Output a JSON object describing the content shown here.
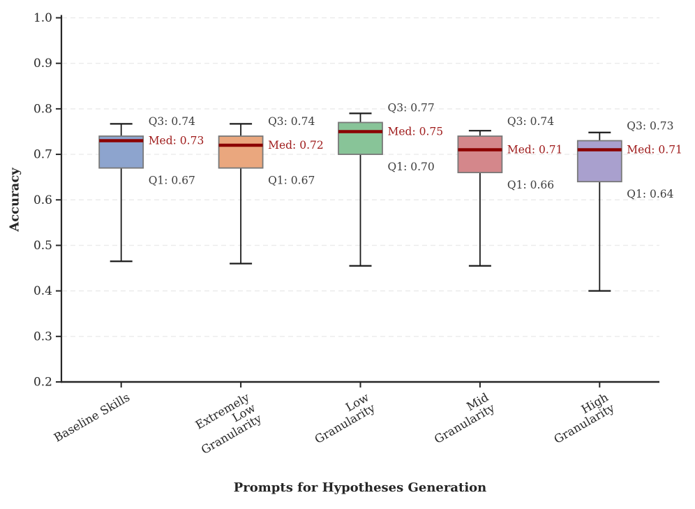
{
  "chart_data": {
    "type": "boxplot",
    "title": "",
    "xlabel": "Prompts for Hypotheses Generation",
    "ylabel": "Accuracy",
    "ylim": [
      0.2,
      1.0
    ],
    "yticks": [
      0.2,
      0.3,
      0.4,
      0.5,
      0.6,
      0.7,
      0.8,
      0.9,
      1.0
    ],
    "grid": "horizontal dashed",
    "legend": "none",
    "boxes": [
      {
        "category": "Baseline Skills",
        "category_lines": [
          "Baseline Skills"
        ],
        "whisker_low": 0.465,
        "q1": 0.67,
        "median": 0.73,
        "q3": 0.74,
        "whisker_high": 0.767,
        "fill": "#8da4ce",
        "labels": {
          "q3": "Q3: 0.74",
          "med": "Med: 0.73",
          "q1": "Q1: 0.67"
        }
      },
      {
        "category": "Extremely Low Granularity",
        "category_lines": [
          "Extremely",
          "Low",
          "Granularity"
        ],
        "whisker_low": 0.46,
        "q1": 0.67,
        "median": 0.72,
        "q3": 0.74,
        "whisker_high": 0.767,
        "fill": "#eaa77e",
        "labels": {
          "q3": "Q3: 0.74",
          "med": "Med: 0.72",
          "q1": "Q1: 0.67"
        }
      },
      {
        "category": "Low Granularity",
        "category_lines": [
          "Low",
          "Granularity"
        ],
        "whisker_low": 0.455,
        "q1": 0.7,
        "median": 0.75,
        "q3": 0.77,
        "whisker_high": 0.79,
        "fill": "#88c498",
        "labels": {
          "q3": "Q3: 0.77",
          "med": "Med: 0.75",
          "q1": "Q1: 0.70"
        }
      },
      {
        "category": "Mid Granularity",
        "category_lines": [
          "Mid",
          "Granularity"
        ],
        "whisker_low": 0.455,
        "q1": 0.66,
        "median": 0.71,
        "q3": 0.74,
        "whisker_high": 0.752,
        "fill": "#d4878b",
        "labels": {
          "q3": "Q3: 0.74",
          "med": "Med: 0.71",
          "q1": "Q1: 0.66"
        }
      },
      {
        "category": "High Granularity",
        "category_lines": [
          "High",
          "Granularity"
        ],
        "whisker_low": 0.4,
        "q1": 0.64,
        "median": 0.71,
        "q3": 0.73,
        "whisker_high": 0.748,
        "fill": "#a9a0ce",
        "labels": {
          "q3": "Q3: 0.73",
          "med": "Med: 0.71",
          "q1": "Q1: 0.64"
        }
      }
    ],
    "colors": {
      "median_line": "#8b0000",
      "median_label": "#9e1a1a",
      "quartile_label": "#3d3d3d",
      "box_edge": "#787878",
      "whisker": "#1a1a1a",
      "spine": "#262626",
      "grid": "#ebebeb",
      "tick_label": "#262626"
    }
  }
}
